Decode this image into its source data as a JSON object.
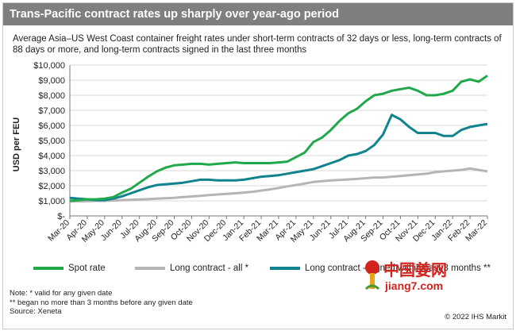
{
  "title": "Trans-Pacific contract rates up sharply over year-ago period",
  "subtitle": "Average Asia–US West Coast container freight rates under short-term contracts of 32 days or less, long-term contracts of 88 days or more, and long-term contracts signed in the last three months",
  "chart_data": {
    "type": "line",
    "ylabel": "USD per FEU",
    "xlabel": "",
    "ylim": [
      0,
      10000
    ],
    "y_ticks": [
      "$-",
      "$1,000",
      "$2,000",
      "$3,000",
      "$4,000",
      "$5,000",
      "$6,000",
      "$7,000",
      "$8,000",
      "$9,000",
      "$10,000"
    ],
    "x_tick_labels": [
      "Mar-20",
      "Apr-20",
      "May-20",
      "Jun-20",
      "Jul-20",
      "Aug-20",
      "Sep-20",
      "Oct-20",
      "Nov-20",
      "Dec-20",
      "Jan-21",
      "Feb-21",
      "Mar-21",
      "Apr-21",
      "May-21",
      "Jun-21",
      "Jul-21",
      "Aug-21",
      "Sep-21",
      "Oct-21",
      "Nov-21",
      "Dec-21",
      "Jan-22",
      "Feb-22",
      "Mar-22"
    ],
    "grid": true,
    "legend": "bottom",
    "x_months": [
      0,
      0.5,
      1,
      1.5,
      2,
      2.5,
      3,
      3.5,
      4,
      4.5,
      5,
      5.5,
      6,
      6.5,
      7,
      7.5,
      8,
      8.5,
      9,
      9.5,
      10,
      10.5,
      11,
      11.5,
      12,
      12.5,
      13,
      13.5,
      14,
      14.5,
      15,
      15.5,
      16,
      16.5,
      17,
      17.5,
      18,
      18.5,
      19,
      19.5,
      20,
      20.5,
      21,
      21.5,
      22,
      22.5,
      23,
      23.5,
      24
    ],
    "series": [
      {
        "name": "Spot rate",
        "color": "#21a84a",
        "values": [
          1000,
          1050,
          1100,
          1100,
          1150,
          1250,
          1550,
          1800,
          2200,
          2600,
          2950,
          3200,
          3350,
          3400,
          3450,
          3450,
          3400,
          3450,
          3500,
          3550,
          3500,
          3500,
          3500,
          3500,
          3550,
          3600,
          3900,
          4200,
          4900,
          5200,
          5700,
          6300,
          6800,
          7100,
          7600,
          8000,
          8100,
          8300,
          8400,
          8500,
          8300,
          8000,
          8000,
          8100,
          8300,
          8900,
          9050,
          8900,
          9300
        ]
      },
      {
        "name": "Long contract - all *",
        "color": "#b5b5b5",
        "values": [
          950,
          975,
          975,
          1000,
          1000,
          1020,
          1050,
          1070,
          1090,
          1110,
          1140,
          1170,
          1200,
          1250,
          1290,
          1330,
          1380,
          1420,
          1460,
          1500,
          1550,
          1600,
          1680,
          1760,
          1850,
          1960,
          2050,
          2150,
          2250,
          2300,
          2350,
          2380,
          2420,
          2450,
          2500,
          2550,
          2550,
          2600,
          2650,
          2700,
          2750,
          2800,
          2900,
          2950,
          3000,
          3050,
          3150,
          3050,
          2950
        ]
      },
      {
        "name": "Long contract - signed within past 3 months **",
        "color": "#10838f",
        "values": [
          1200,
          1150,
          1100,
          1050,
          1050,
          1150,
          1300,
          1500,
          1700,
          1900,
          2050,
          2100,
          2150,
          2200,
          2300,
          2400,
          2400,
          2350,
          2350,
          2350,
          2400,
          2500,
          2600,
          2650,
          2700,
          2800,
          2900,
          3000,
          3100,
          3300,
          3500,
          3700,
          4000,
          4100,
          4300,
          4700,
          5400,
          6700,
          6400,
          5900,
          5500,
          5500,
          5500,
          5300,
          5300,
          5700,
          5900,
          6000,
          6100
        ]
      }
    ]
  },
  "notes": [
    "Note: * valid for any given date",
    "** began no more than 3 months before any given date",
    "Source: Xeneta"
  ],
  "copyright": "© 2022 IHS Markit",
  "watermark": {
    "chinese": "中国姜网",
    "url": "jiang7.com"
  }
}
